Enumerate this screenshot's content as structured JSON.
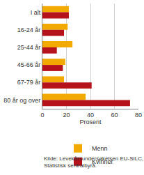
{
  "chart_data": {
    "type": "bar",
    "orientation": "horizontal",
    "categories": [
      "I alt",
      "16-24 år",
      "25-44 år",
      "45-66 år",
      "67-79 år",
      "80 år og over"
    ],
    "series": [
      {
        "name": "Menn",
        "color": "#f2a900",
        "values": [
          22,
          21,
          25,
          19,
          18,
          36
        ]
      },
      {
        "name": "Kvinner",
        "color": "#b5121b",
        "values": [
          22,
          18,
          12,
          17,
          41,
          73
        ]
      }
    ],
    "xlabel": "Prosent",
    "xlim": [
      0,
      80
    ],
    "xticks": [
      0,
      20,
      40,
      60,
      80
    ],
    "grid": true,
    "legend": "bottom",
    "source": "Kilde: Levekårsundersøkelsen EU-SILC, Statistisk sentralbyrå."
  }
}
